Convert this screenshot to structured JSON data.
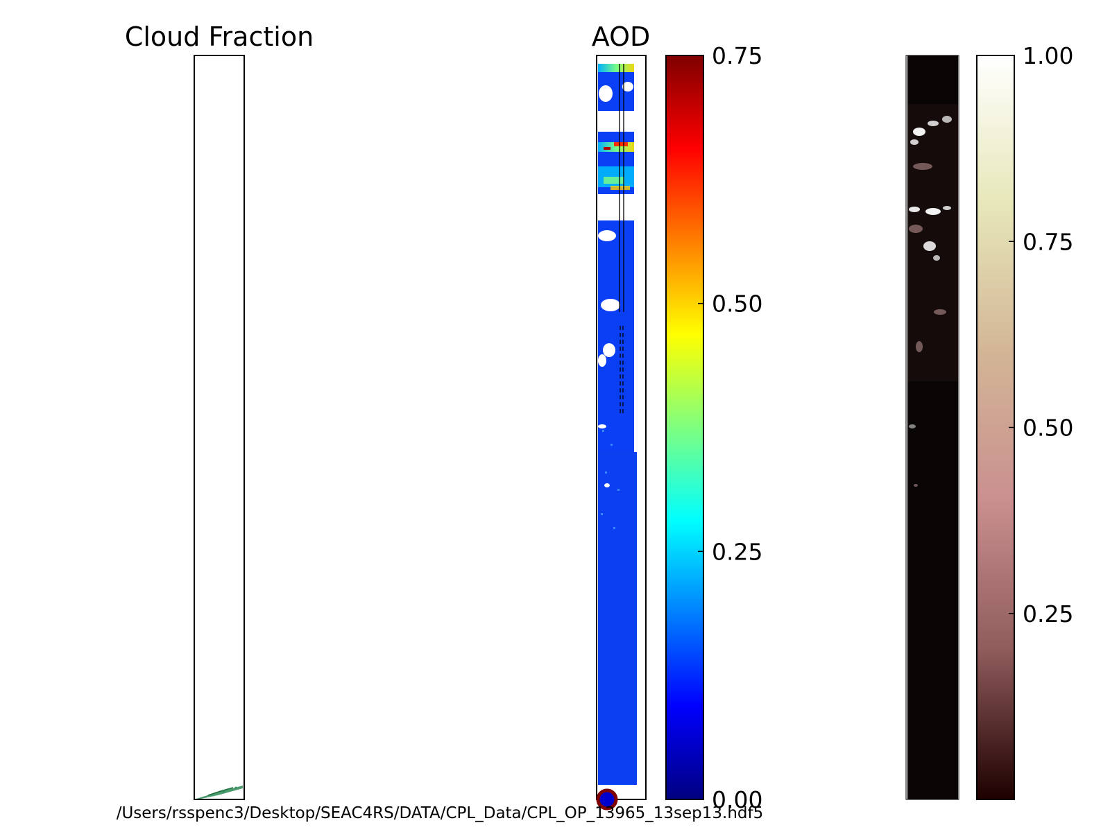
{
  "footer_path": "/Users/rsspenc3/Desktop/SEAC4RS/DATA/CPL_Data/CPL_OP_13965_13sep13.hdf5",
  "chart_data": [
    {
      "type": "heatmap",
      "title": "Cloud Fraction",
      "content": "swath image, almost entirely empty; small green streak at the bottom-right edge"
    },
    {
      "type": "heatmap",
      "title": "AOD",
      "colormap": "jet",
      "colorbar": {
        "range": [
          0,
          0.75
        ],
        "ticks": [
          "0.00",
          "0.25",
          "0.50",
          "0.75"
        ]
      },
      "typical_value": 0.1,
      "content": "swath of aerosol optical depth, mostly low values (blue) with white cloud gaps and a few higher-AOD patches near the top"
    },
    {
      "type": "heatmap",
      "title": "",
      "colormap": "pink",
      "colorbar": {
        "range": [
          0,
          1.0
        ],
        "ticks": [
          "0.25",
          "0.50",
          "0.75",
          "1.00"
        ]
      },
      "content": "dark swath with sparse bright cloud features concentrated near the top"
    }
  ],
  "colors": {
    "jet": [
      "#00007f",
      "#0000ff",
      "#007fff",
      "#00ffff",
      "#7fff7f",
      "#ffff00",
      "#ff7f00",
      "#ff0000",
      "#7f0000"
    ],
    "pink": [
      "#1e0000",
      "#8f5b5b",
      "#c98f8f",
      "#d3b596",
      "#e7e7b9",
      "#ffffff"
    ],
    "aod_swath_base": "#0a3ff5",
    "cloud_swath_base": "#0a0505"
  }
}
